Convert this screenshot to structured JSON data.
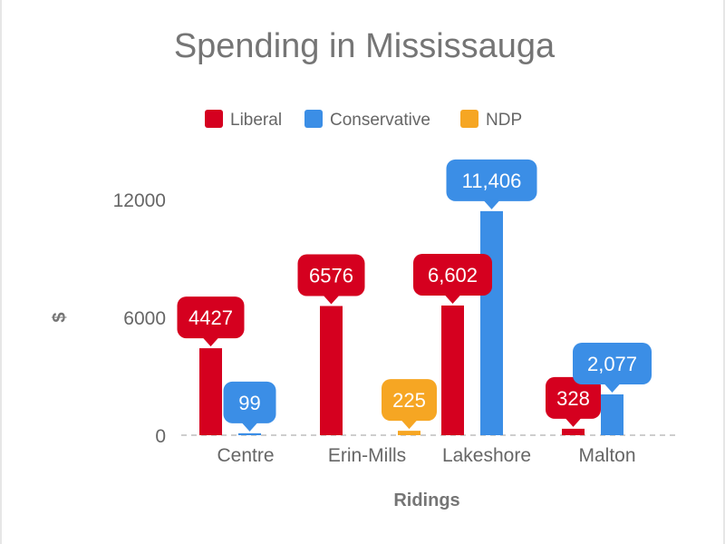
{
  "chart_data": {
    "type": "bar",
    "title": "Spending in Mississauga",
    "xlabel": "Ridings",
    "ylabel": "$",
    "categories": [
      "Centre",
      "Erin-Mills",
      "Lakeshore",
      "Malton"
    ],
    "series": [
      {
        "name": "Liberal",
        "color": "#d5001f",
        "values": [
          4427,
          6576,
          6602,
          328
        ],
        "labels": [
          "4427",
          "6576",
          "6,602",
          "328"
        ]
      },
      {
        "name": "Conservative",
        "color": "#3b8ee6",
        "values": [
          99,
          null,
          11406,
          2077
        ],
        "labels": [
          "99",
          "",
          "11,406",
          "2,077"
        ]
      },
      {
        "name": "NDP",
        "color": "#f6a623",
        "values": [
          null,
          225,
          null,
          null
        ],
        "labels": [
          "",
          "225",
          "",
          ""
        ]
      }
    ],
    "yticks": [
      0,
      6000,
      12000
    ],
    "ytick_labels": [
      "0",
      "6000",
      "12000"
    ],
    "ylim": [
      0,
      12500
    ],
    "legend": "top",
    "grid": false,
    "baseline": "dashed"
  }
}
